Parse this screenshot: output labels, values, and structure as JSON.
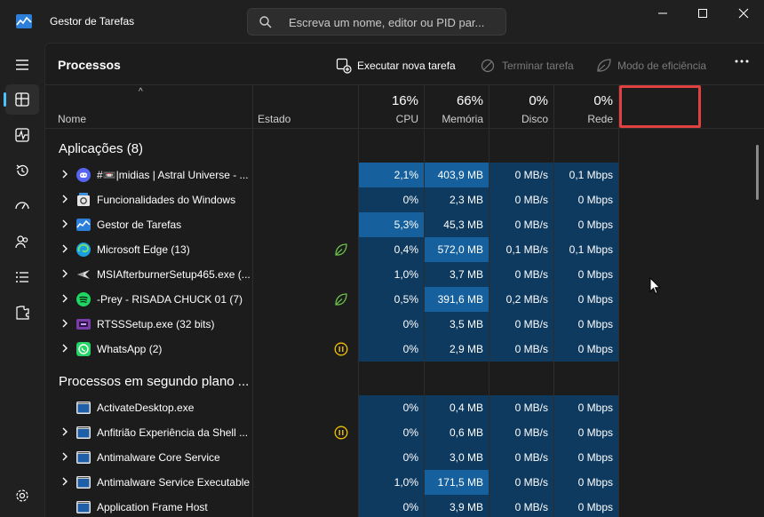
{
  "window": {
    "title": "Gestor de Tarefas",
    "search_placeholder": "Escreva um nome, editor ou PID par...",
    "controls": [
      "minimize",
      "maximize",
      "close"
    ]
  },
  "sidebar": {
    "items": [
      {
        "icon": "processes-icon",
        "active": true
      },
      {
        "icon": "performance-icon",
        "active": false
      },
      {
        "icon": "app-history-icon",
        "active": false
      },
      {
        "icon": "startup-apps-icon",
        "active": false
      },
      {
        "icon": "users-icon",
        "active": false
      },
      {
        "icon": "details-icon",
        "active": false
      },
      {
        "icon": "services-icon",
        "active": false
      }
    ],
    "settings_icon": "settings-icon"
  },
  "header": {
    "title": "Processos",
    "run_new_task": "Executar nova tarefa",
    "end_task": "Terminar tarefa",
    "efficiency_mode": "Modo de eficiência",
    "more": "..."
  },
  "columns": {
    "sort_indicator": "^",
    "name": "Nome",
    "state": "Estado",
    "cpu_pct": "16%",
    "cpu": "CPU",
    "mem_pct": "66%",
    "mem": "Memória",
    "disk_pct": "0%",
    "disk": "Disco",
    "net_pct": "0%",
    "net": "Rede"
  },
  "sections": {
    "apps": "Aplicações (8)",
    "background": "Processos em segundo plano ..."
  },
  "apps": [
    {
      "name": "#📼|midias | Astral Universe - ...",
      "icon": "discord-icon",
      "status": "",
      "cpu": "2,1%",
      "mem": "403,9 MB",
      "disk": "0 MB/s",
      "net": "0,1 Mbps",
      "heat": [
        "hot",
        "hot",
        "dark",
        "dark"
      ]
    },
    {
      "name": "Funcionalidades do Windows",
      "icon": "windows-features-icon",
      "status": "",
      "cpu": "0%",
      "mem": "2,3 MB",
      "disk": "0 MB/s",
      "net": "0 Mbps",
      "heat": [
        "dark",
        "dark",
        "dark",
        "dark"
      ]
    },
    {
      "name": "Gestor de Tarefas",
      "icon": "task-manager-icon",
      "status": "",
      "cpu": "5,3%",
      "mem": "45,3 MB",
      "disk": "0 MB/s",
      "net": "0 Mbps",
      "heat": [
        "hot",
        "dark",
        "dark",
        "dark"
      ]
    },
    {
      "name": "Microsoft Edge (13)",
      "icon": "edge-icon",
      "status": "efficiency-leaf-icon",
      "cpu": "0,4%",
      "mem": "572,0 MB",
      "disk": "0,1 MB/s",
      "net": "0,1 Mbps",
      "heat": [
        "dark",
        "hot",
        "dark",
        "dark"
      ]
    },
    {
      "name": "MSIAfterburnerSetup465.exe (...",
      "icon": "afterburner-icon",
      "status": "",
      "cpu": "1,0%",
      "mem": "3,7 MB",
      "disk": "0 MB/s",
      "net": "0 Mbps",
      "heat": [
        "dark",
        "dark",
        "dark",
        "dark"
      ]
    },
    {
      "name": "-Prey - RISADA CHUCK 01 (7)",
      "icon": "spotify-icon",
      "status": "efficiency-leaf-icon",
      "cpu": "0,5%",
      "mem": "391,6 MB",
      "disk": "0,2 MB/s",
      "net": "0 Mbps",
      "heat": [
        "dark",
        "hot",
        "dark",
        "dark"
      ]
    },
    {
      "name": "RTSSSetup.exe (32 bits)",
      "icon": "rtss-icon",
      "status": "",
      "cpu": "0%",
      "mem": "3,5 MB",
      "disk": "0 MB/s",
      "net": "0 Mbps",
      "heat": [
        "dark",
        "dark",
        "dark",
        "dark"
      ]
    },
    {
      "name": "WhatsApp (2)",
      "icon": "whatsapp-icon",
      "status": "suspended-icon",
      "cpu": "0%",
      "mem": "2,9 MB",
      "disk": "0 MB/s",
      "net": "0 Mbps",
      "heat": [
        "dark",
        "dark",
        "dark",
        "dark"
      ]
    }
  ],
  "background": [
    {
      "name": "ActivateDesktop.exe",
      "expandable": false,
      "status": "",
      "cpu": "0%",
      "mem": "0,4 MB",
      "disk": "0 MB/s",
      "net": "0 Mbps",
      "heat": [
        "dark",
        "dark",
        "dark",
        "dark"
      ]
    },
    {
      "name": "Anfitrião Experiência da Shell ...",
      "expandable": true,
      "status": "suspended-icon",
      "cpu": "0%",
      "mem": "0,6 MB",
      "disk": "0 MB/s",
      "net": "0 Mbps",
      "heat": [
        "dark",
        "dark",
        "dark",
        "dark"
      ]
    },
    {
      "name": "Antimalware Core Service",
      "expandable": true,
      "status": "",
      "cpu": "0%",
      "mem": "3,0 MB",
      "disk": "0 MB/s",
      "net": "0 Mbps",
      "heat": [
        "dark",
        "dark",
        "dark",
        "dark"
      ]
    },
    {
      "name": "Antimalware Service Executable",
      "expandable": true,
      "status": "",
      "cpu": "1,0%",
      "mem": "171,5 MB",
      "disk": "0 MB/s",
      "net": "0 Mbps",
      "heat": [
        "dark",
        "hot",
        "dark",
        "dark"
      ]
    },
    {
      "name": "Application Frame Host",
      "expandable": false,
      "status": "",
      "cpu": "0%",
      "mem": "3,9 MB",
      "disk": "0 MB/s",
      "net": "0 Mbps",
      "heat": [
        "dark",
        "dark",
        "dark",
        "dark"
      ]
    }
  ],
  "colors": {
    "accent": "#4cc2ff",
    "heat_dark": "#0e3a60",
    "heat_hot": "#15609d",
    "highlight": "#e04040"
  }
}
